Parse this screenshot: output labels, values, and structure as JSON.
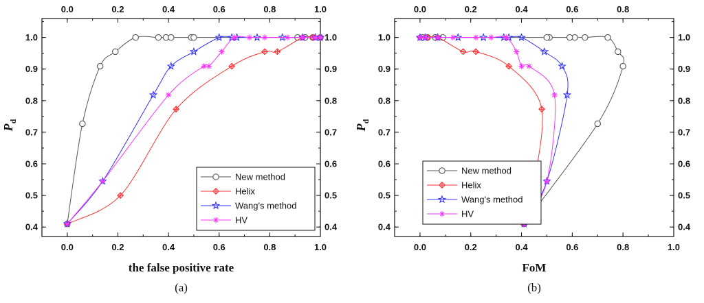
{
  "chart_data": [
    {
      "type": "line",
      "panel_label": "(a)",
      "xlabel": "the false positive rate",
      "ylabel": "P",
      "ylabel_sub": "d",
      "xlim": [
        -0.1,
        1.0
      ],
      "ylim": [
        0.37,
        1.06
      ],
      "x_ticks": [
        "0.0",
        "0.2",
        "0.4",
        "0.6",
        "0.8",
        "1.0"
      ],
      "x_tick_values": [
        0.0,
        0.2,
        0.4,
        0.6,
        0.8,
        1.0
      ],
      "y_ticks": [
        "0.4",
        "0.5",
        "0.6",
        "0.7",
        "0.8",
        "0.9",
        "1.0"
      ],
      "y_tick_values": [
        0.4,
        0.5,
        0.6,
        0.7,
        0.8,
        0.9,
        1.0
      ],
      "grid": false,
      "legend_position": "bottom-right",
      "series": [
        {
          "name": "New method",
          "color": "#555555",
          "marker": "circle",
          "x": [
            0.0,
            0.06,
            0.13,
            0.19,
            0.27,
            0.36,
            0.39,
            0.41,
            0.49,
            0.5,
            0.91,
            0.94,
            0.97,
            1.0
          ],
          "y": [
            0.41,
            0.727,
            0.909,
            0.955,
            1.0,
            1.0,
            1.0,
            1.0,
            1.0,
            1.0,
            1.0,
            1.0,
            1.0,
            1.0
          ]
        },
        {
          "name": "Helix",
          "color": "#ff3333",
          "marker": "diamond-plus",
          "x": [
            0.0,
            0.21,
            0.43,
            0.65,
            0.78,
            0.83,
            0.93,
            0.97,
            1.0
          ],
          "y": [
            0.41,
            0.5,
            0.773,
            0.909,
            0.955,
            0.955,
            1.0,
            1.0,
            1.0
          ]
        },
        {
          "name": "Wang's method",
          "color": "#3333ff",
          "marker": "star",
          "x": [
            0.0,
            0.14,
            0.34,
            0.41,
            0.5,
            0.6,
            0.65,
            0.67,
            0.75,
            0.85,
            0.93,
            0.98,
            1.0
          ],
          "y": [
            0.41,
            0.545,
            0.818,
            0.909,
            0.955,
            1.0,
            1.0,
            1.0,
            1.0,
            1.0,
            1.0,
            1.0,
            1.0
          ]
        },
        {
          "name": "HV",
          "color": "#ff33ff",
          "marker": "asterisk",
          "x": [
            0.0,
            0.14,
            0.4,
            0.54,
            0.56,
            0.61,
            0.66,
            0.72,
            0.78,
            0.87,
            0.93,
            0.98,
            1.0
          ],
          "y": [
            0.41,
            0.545,
            0.818,
            0.909,
            0.909,
            0.955,
            1.0,
            1.0,
            1.0,
            1.0,
            1.0,
            1.0,
            1.0
          ]
        }
      ]
    },
    {
      "type": "line",
      "panel_label": "(b)",
      "xlabel": "FoM",
      "ylabel": "P",
      "ylabel_sub": "d",
      "xlim": [
        -0.1,
        1.0
      ],
      "ylim": [
        0.37,
        1.06
      ],
      "x_ticks": [
        "0.0",
        "0.2",
        "0.4",
        "0.6",
        "0.8"
      ],
      "x_tick_values": [
        0.0,
        0.2,
        0.4,
        0.6,
        0.8
      ],
      "x_ticks_bottom": [
        "0.0",
        "0.2",
        "0.4",
        "0.6",
        "0.8",
        "1.0"
      ],
      "x_tick_values_bottom": [
        0.0,
        0.2,
        0.4,
        0.6,
        0.8,
        1.0
      ],
      "y_ticks": [
        "0.4",
        "0.5",
        "0.6",
        "0.7",
        "0.8",
        "0.9",
        "1.0"
      ],
      "y_tick_values": [
        0.4,
        0.5,
        0.6,
        0.7,
        0.8,
        0.9,
        1.0
      ],
      "grid": false,
      "legend_position": "bottom-left",
      "series": [
        {
          "name": "New method",
          "color": "#555555",
          "marker": "circle",
          "x": [
            0.41,
            0.7,
            0.8,
            0.78,
            0.74,
            0.65,
            0.61,
            0.59,
            0.51,
            0.5,
            0.09,
            0.06,
            0.03,
            0.01
          ],
          "y": [
            0.41,
            0.727,
            0.909,
            0.955,
            1.0,
            1.0,
            1.0,
            1.0,
            1.0,
            1.0,
            1.0,
            1.0,
            1.0,
            1.0
          ]
        },
        {
          "name": "Helix",
          "color": "#ff3333",
          "marker": "diamond-plus",
          "x": [
            0.41,
            0.44,
            0.48,
            0.35,
            0.22,
            0.17,
            0.07,
            0.03,
            0.0
          ],
          "y": [
            0.41,
            0.5,
            0.773,
            0.909,
            0.955,
            0.955,
            1.0,
            1.0,
            1.0
          ]
        },
        {
          "name": "Wang's method",
          "color": "#3333ff",
          "marker": "star",
          "x": [
            0.41,
            0.5,
            0.58,
            0.56,
            0.49,
            0.4,
            0.35,
            0.33,
            0.25,
            0.15,
            0.07,
            0.02,
            0.0
          ],
          "y": [
            0.41,
            0.545,
            0.818,
            0.909,
            0.955,
            1.0,
            1.0,
            1.0,
            1.0,
            1.0,
            1.0,
            1.0,
            1.0
          ]
        },
        {
          "name": "HV",
          "color": "#ff33ff",
          "marker": "asterisk",
          "x": [
            0.41,
            0.5,
            0.53,
            0.43,
            0.4,
            0.38,
            0.34,
            0.28,
            0.22,
            0.13,
            0.07,
            0.02,
            0.0
          ],
          "y": [
            0.41,
            0.545,
            0.818,
            0.909,
            0.909,
            0.955,
            1.0,
            1.0,
            1.0,
            1.0,
            1.0,
            1.0,
            1.0
          ]
        }
      ]
    }
  ]
}
